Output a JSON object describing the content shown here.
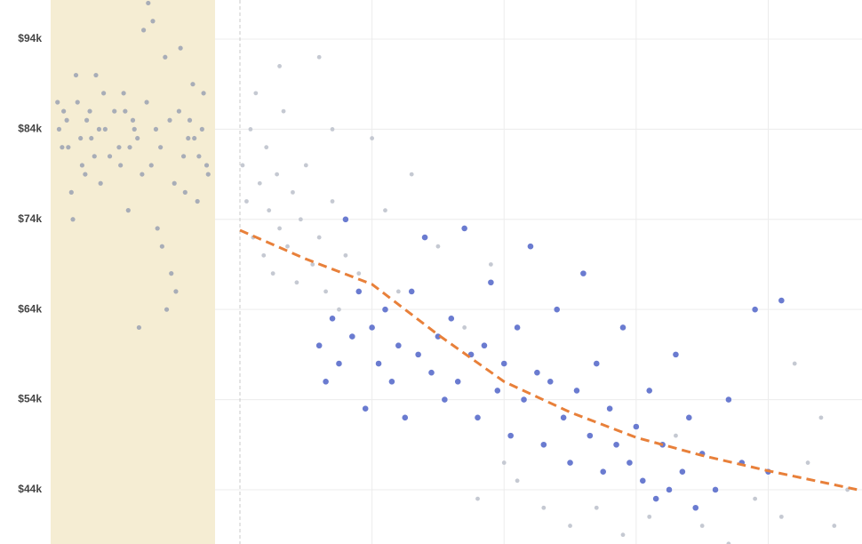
{
  "chart_data": {
    "type": "scatter",
    "ylim": [
      37.98,
      98.34
    ],
    "yticks": [
      {
        "value": 44,
        "label": "$44k"
      },
      {
        "value": 54,
        "label": "$54k"
      },
      {
        "value": 64,
        "label": "$64k"
      },
      {
        "value": 74,
        "label": "$74k"
      },
      {
        "value": 84,
        "label": "$84k"
      },
      {
        "value": 94,
        "label": "$94k"
      }
    ],
    "xlim": [
      0,
      4.71
    ],
    "xticks": [
      1,
      2,
      3,
      4
    ],
    "grid": true,
    "strip": {
      "color": "#8e97ad",
      "band_color": "#f5edd3",
      "values": [
        88,
        84,
        81,
        86,
        79,
        83,
        90,
        77,
        85,
        82,
        87,
        80,
        84,
        76,
        89,
        83,
        81,
        86,
        78,
        85,
        92,
        82,
        84,
        80,
        87,
        79,
        83,
        85,
        75,
        88,
        82,
        86,
        81,
        84,
        78,
        90,
        83,
        85,
        80,
        87,
        74,
        82,
        86,
        84,
        79,
        88,
        81,
        83,
        85,
        77,
        93,
        66,
        68,
        64,
        71,
        73,
        96,
        98,
        95,
        62,
        84,
        82,
        86,
        80
      ]
    },
    "series": [
      {
        "color": "#c5c9d2",
        "x": [
          0.02,
          0.05,
          0.08,
          0.1,
          0.12,
          0.15,
          0.18,
          0.2,
          0.22,
          0.25,
          0.28,
          0.3,
          0.33,
          0.36,
          0.4,
          0.43,
          0.46,
          0.5,
          0.55,
          0.6,
          0.65,
          0.7,
          0.75,
          0.8,
          0.9,
          1.0,
          1.1,
          1.2,
          1.3,
          1.5,
          1.7,
          1.9,
          2.1,
          2.3,
          2.5,
          2.7,
          2.9,
          3.1,
          3.3,
          3.5,
          3.7,
          3.9,
          4.1,
          4.3,
          4.5,
          4.6,
          0.3,
          0.6,
          0.7,
          1.8,
          2.0,
          4.4,
          4.2
        ],
        "y": [
          80,
          76,
          84,
          72,
          88,
          78,
          70,
          82,
          75,
          68,
          79,
          73,
          86,
          71,
          77,
          67,
          74,
          80,
          69,
          72,
          66,
          76,
          64,
          70,
          68,
          83,
          75,
          66,
          79,
          71,
          62,
          69,
          45,
          42,
          40,
          42,
          39,
          41,
          50,
          40,
          38,
          43,
          41,
          47,
          40,
          44,
          91,
          92,
          84,
          43,
          47,
          52,
          58
        ]
      },
      {
        "color": "#6a7bd0",
        "x": [
          0.6,
          0.65,
          0.7,
          0.75,
          0.8,
          0.85,
          0.9,
          0.95,
          1.0,
          1.05,
          1.1,
          1.15,
          1.2,
          1.25,
          1.3,
          1.35,
          1.4,
          1.45,
          1.5,
          1.55,
          1.6,
          1.65,
          1.7,
          1.75,
          1.8,
          1.85,
          1.9,
          1.95,
          2.0,
          2.05,
          2.1,
          2.15,
          2.2,
          2.25,
          2.3,
          2.35,
          2.4,
          2.45,
          2.5,
          2.55,
          2.6,
          2.65,
          2.7,
          2.75,
          2.8,
          2.85,
          2.9,
          2.95,
          3.0,
          3.05,
          3.1,
          3.15,
          3.2,
          3.25,
          3.3,
          3.35,
          3.4,
          3.45,
          3.5,
          3.6,
          3.7,
          3.8,
          3.9,
          4.0,
          4.1
        ],
        "y": [
          60,
          56,
          63,
          58,
          74,
          61,
          66,
          53,
          62,
          58,
          64,
          56,
          60,
          52,
          66,
          59,
          72,
          57,
          61,
          54,
          63,
          56,
          73,
          59,
          52,
          60,
          67,
          55,
          58,
          50,
          62,
          54,
          71,
          57,
          49,
          56,
          64,
          52,
          47,
          55,
          68,
          50,
          58,
          46,
          53,
          49,
          62,
          47,
          51,
          45,
          55,
          43,
          49,
          44,
          59,
          46,
          52,
          42,
          48,
          44,
          54,
          47,
          64,
          46,
          65
        ]
      }
    ],
    "trend": {
      "color": "#e8803a",
      "x": [
        0,
        0.5,
        1,
        1.5,
        2,
        2.5,
        3,
        3.5,
        4,
        4.71
      ],
      "y": [
        72.8,
        69.6,
        66.8,
        61.2,
        56.0,
        52.6,
        49.8,
        47.8,
        46.1,
        43.9
      ]
    }
  }
}
